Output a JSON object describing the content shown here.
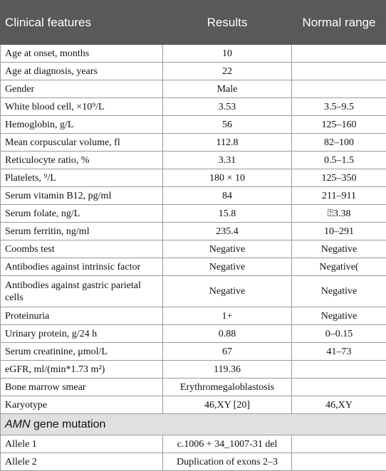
{
  "table": {
    "header": [
      "Clinical features",
      "Results",
      "Normal range"
    ],
    "rows": [
      [
        "Age at onset, months",
        "10",
        null
      ],
      [
        "Age at diagnosis, years",
        "22",
        null
      ],
      [
        "Gender",
        "Male",
        null
      ],
      [
        "White blood cell, ×10⁹/L",
        "3.53",
        "3.5–9.5"
      ],
      [
        "Hemoglobin, g/L",
        "56",
        "125–160"
      ],
      [
        "Mean corpuscular volume, fl",
        "112.8",
        "82–100"
      ],
      [
        "Reticulocyte ratio, %",
        "3.31",
        "0.5–1.5"
      ],
      [
        "Platelets, ⁹/L",
        "180 × 10",
        "125–350"
      ],
      [
        "Serum vitamin B12, pg/ml",
        "84",
        "211–911"
      ],
      [
        "Serum folate, ng/L",
        "15.8",
        "⍰3.38"
      ],
      [
        "Serum ferritin, ng/ml",
        "235.4",
        "10–291"
      ],
      [
        "Coombs test",
        "Negative",
        "Negative"
      ],
      [
        "Antibodies against intrinsic factor",
        "Negative",
        "Negative("
      ],
      [
        "Antibodies against gastric parietal cells",
        "Negative",
        "Negative"
      ],
      [
        "Proteinuria",
        "1+",
        "Negative"
      ],
      [
        "Urinary protein, g/24 h",
        "0.88",
        "0–0.15"
      ],
      [
        "Serum creatinine, μmol/L",
        "67",
        "41–73"
      ],
      [
        "eGFR, ml/(min*1.73 m²)",
        "119.36",
        null
      ],
      [
        "Bone marrow smear",
        "Erythromegaloblastosis",
        null
      ],
      [
        "Karyotype",
        "46,XY [20]",
        "46,XY"
      ]
    ],
    "section": {
      "italic": "AMN",
      "text": "gene mutation"
    },
    "section_rows": [
      [
        "Allele 1",
        "c.1006 + 34_1007-31 del",
        null
      ],
      [
        "Allele 2",
        "Duplication of exons 2–3",
        null
      ]
    ]
  }
}
